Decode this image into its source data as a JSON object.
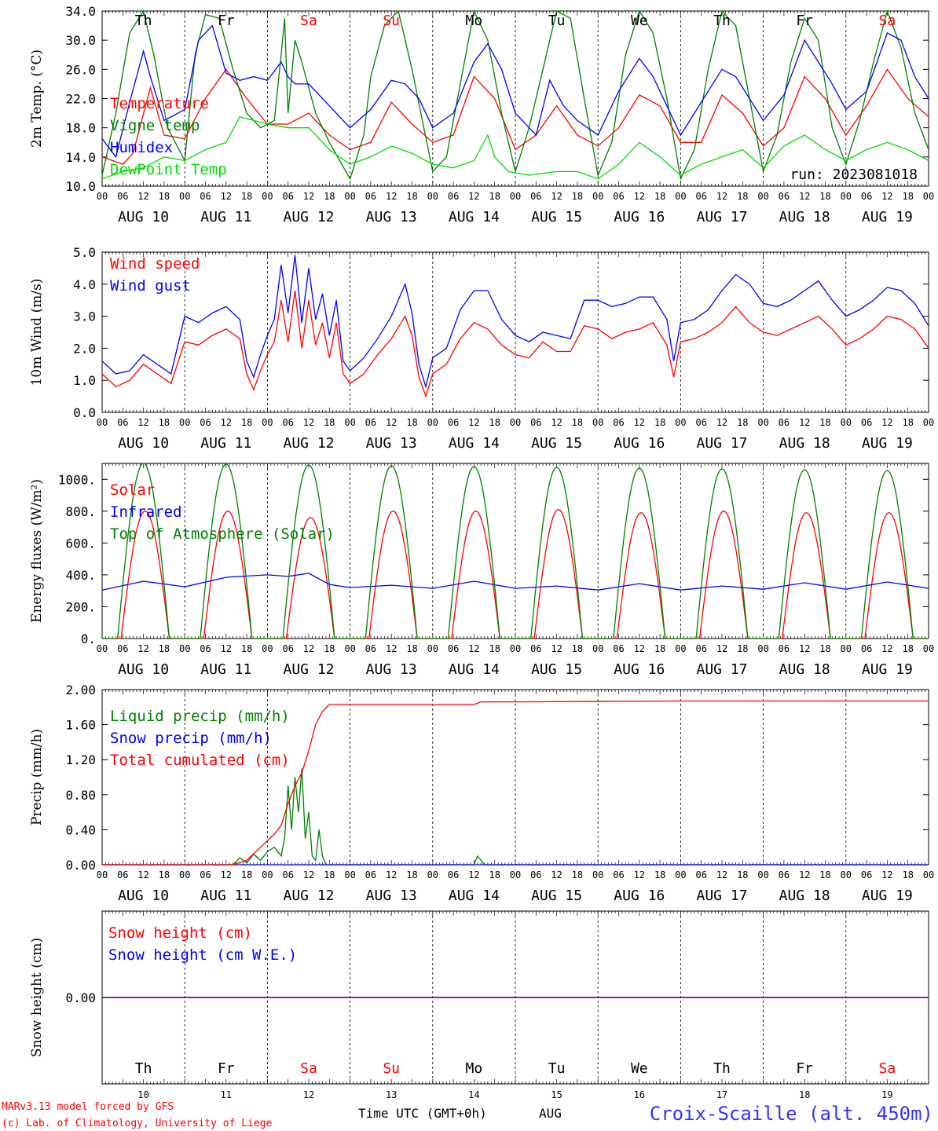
{
  "footer": {
    "model_line": "MARv3.13 model forced by GFS",
    "credit_line": "(c) Lab. of Climatology, University of Liege",
    "xlabel": "Time UTC (GMT+0h)",
    "month": "AUG",
    "station": "Croix-Scaille (alt. 450m)"
  },
  "colors": {
    "red": "#ff0000",
    "green": "#008000",
    "blue": "#0000ff",
    "lightgreen": "#00dd00",
    "purple": "#800080",
    "station": "#3333ff"
  },
  "time_axis": {
    "day_of_week": [
      "Th",
      "Fr",
      "Sa",
      "Su",
      "Mo",
      "Tu",
      "We",
      "Th",
      "Fr",
      "Sa"
    ],
    "weekend_index": [
      2,
      3,
      9
    ],
    "dates": [
      "AUG 10",
      "AUG 11",
      "AUG 12",
      "AUG 13",
      "AUG 14",
      "AUG 15",
      "AUG 16",
      "AUG 17",
      "AUG 18",
      "AUG 19"
    ],
    "day_numbers": [
      "10",
      "11",
      "12",
      "13",
      "14",
      "15",
      "16",
      "17",
      "18",
      "19"
    ],
    "hour_ticks": [
      "00",
      "06",
      "12",
      "18"
    ],
    "last_tick": "00"
  },
  "chart_data": [
    {
      "type": "line",
      "ylabel": "2m Temp. (°C)",
      "ylim": [
        10,
        34
      ],
      "yticks": [
        "10.0",
        "14.0",
        "18.0",
        "22.0",
        "26.0",
        "30.0",
        "34.0"
      ],
      "annotation": "run: 2023081018",
      "x_unit": "hours since AUG 10 00 UTC",
      "series": [
        {
          "name": "Temperature",
          "color": "red",
          "x": [
            0,
            6,
            9,
            14,
            18,
            24,
            30,
            36,
            42,
            48,
            54,
            60,
            66,
            72,
            78,
            84,
            90,
            96,
            102,
            108,
            114,
            120,
            126,
            132,
            138,
            144,
            150,
            156,
            162,
            168,
            174,
            180,
            186,
            192,
            198,
            204,
            210,
            216,
            222,
            228,
            234,
            240
          ],
          "values": [
            14,
            13,
            14.5,
            23.5,
            17,
            16.5,
            22,
            26,
            22,
            18.5,
            18.5,
            20,
            17,
            15,
            16,
            21.5,
            18.5,
            16,
            17,
            25,
            22,
            15,
            17,
            21,
            17,
            15.5,
            18,
            22.5,
            21,
            16,
            16,
            22.5,
            20,
            15.5,
            18,
            25,
            22,
            17,
            21,
            26,
            22,
            19.5
          ]
        },
        {
          "name": "Vigne temp",
          "color": "green",
          "x": [
            0,
            4,
            8,
            12,
            15,
            19,
            24,
            27,
            30,
            34,
            38,
            42,
            46,
            50,
            52,
            53,
            54,
            56,
            58,
            62,
            66,
            72,
            76,
            78,
            82,
            86,
            90,
            96,
            100,
            104,
            108,
            112,
            116,
            120,
            124,
            128,
            132,
            136,
            140,
            144,
            148,
            152,
            156,
            160,
            164,
            168,
            172,
            176,
            180,
            184,
            188,
            192,
            196,
            200,
            204,
            208,
            212,
            216,
            220,
            224,
            228,
            232,
            236,
            240
          ],
          "values": [
            11.5,
            20,
            31,
            34,
            28,
            18,
            13.5,
            28,
            33.5,
            33,
            26,
            20,
            18,
            19,
            28,
            33,
            20,
            30,
            27,
            20,
            16,
            11,
            17,
            25,
            32,
            34,
            26,
            12,
            14,
            24,
            34,
            30,
            20,
            12,
            18,
            26,
            34,
            33,
            22,
            11.5,
            16,
            28,
            34,
            31,
            22,
            11,
            15,
            26,
            34,
            32,
            22,
            12,
            17,
            27,
            33,
            30,
            18,
            13,
            19,
            27,
            34,
            29,
            20,
            15
          ]
        },
        {
          "name": "Humidex",
          "color": "blue",
          "x": [
            0,
            4,
            8,
            12,
            14,
            18,
            24,
            28,
            32,
            36,
            40,
            44,
            48,
            52,
            54,
            56,
            60,
            66,
            72,
            78,
            84,
            88,
            92,
            96,
            102,
            108,
            112,
            116,
            120,
            126,
            130,
            134,
            138,
            144,
            150,
            156,
            160,
            164,
            168,
            174,
            180,
            184,
            188,
            192,
            198,
            204,
            208,
            212,
            216,
            222,
            228,
            232,
            236,
            240
          ],
          "values": [
            16.5,
            14,
            21.5,
            28.5,
            25,
            19,
            20.5,
            30,
            32,
            25.5,
            24.5,
            25,
            24.5,
            27,
            25,
            24,
            24,
            21,
            18,
            20.5,
            24.5,
            24,
            22,
            18,
            20,
            27,
            29.5,
            26,
            20,
            17,
            24.5,
            21,
            19,
            17,
            23,
            27.5,
            25,
            21,
            17,
            21.5,
            26,
            25,
            22,
            19,
            22.5,
            30,
            27,
            24,
            20.5,
            23,
            31,
            30,
            25,
            22
          ]
        },
        {
          "name": "DewPoint Temp",
          "color": "lightgreen",
          "x": [
            0,
            6,
            12,
            18,
            24,
            30,
            36,
            40,
            44,
            48,
            54,
            60,
            66,
            72,
            78,
            84,
            90,
            96,
            102,
            108,
            112,
            114,
            118,
            124,
            132,
            138,
            144,
            150,
            156,
            162,
            168,
            174,
            180,
            186,
            192,
            198,
            204,
            210,
            216,
            222,
            228,
            234,
            240
          ],
          "values": [
            11,
            12,
            12.5,
            14,
            13.5,
            15,
            16,
            19.5,
            19,
            18.5,
            18,
            18,
            15,
            13,
            14,
            15.5,
            14.5,
            13,
            12.5,
            13.5,
            17,
            14,
            12,
            11.5,
            12,
            12,
            11,
            13,
            16,
            14,
            11.5,
            13,
            14,
            15,
            12.5,
            15.5,
            17,
            15,
            13.5,
            15,
            16,
            15,
            13.5
          ]
        }
      ]
    },
    {
      "type": "line",
      "ylabel": "10m Wind (m/s)",
      "ylim": [
        0,
        5
      ],
      "yticks": [
        "0.0",
        "1.0",
        "2.0",
        "3.0",
        "4.0",
        "5.0"
      ],
      "x_unit": "hours since AUG 10 00 UTC",
      "series": [
        {
          "name": "Wind speed",
          "color": "red",
          "x": [
            0,
            4,
            8,
            12,
            16,
            20,
            24,
            28,
            32,
            36,
            40,
            42,
            44,
            46,
            48,
            50,
            52,
            54,
            56,
            58,
            60,
            62,
            64,
            66,
            68,
            70,
            72,
            76,
            80,
            84,
            88,
            90,
            92,
            94,
            96,
            100,
            104,
            108,
            112,
            116,
            120,
            124,
            128,
            132,
            136,
            140,
            144,
            148,
            152,
            156,
            160,
            164,
            166,
            168,
            172,
            176,
            180,
            184,
            188,
            192,
            196,
            200,
            204,
            208,
            212,
            216,
            220,
            224,
            228,
            232,
            236,
            240
          ],
          "values": [
            1.2,
            0.8,
            1,
            1.5,
            1.2,
            0.9,
            2.2,
            2.1,
            2.4,
            2.6,
            2.3,
            1.2,
            0.7,
            1.3,
            1.8,
            2.2,
            3.5,
            2.2,
            3.8,
            2,
            3.5,
            2.1,
            2.8,
            1.7,
            2.8,
            1.2,
            0.9,
            1.2,
            1.8,
            2.3,
            3,
            2.4,
            1.1,
            0.5,
            1.2,
            1.5,
            2.3,
            2.8,
            2.6,
            2.1,
            1.8,
            1.7,
            2.2,
            1.9,
            1.9,
            2.7,
            2.6,
            2.3,
            2.5,
            2.6,
            2.8,
            2.1,
            1.1,
            2.2,
            2.3,
            2.5,
            2.8,
            3.3,
            2.8,
            2.5,
            2.4,
            2.6,
            2.8,
            3,
            2.6,
            2.1,
            2.3,
            2.6,
            3,
            2.9,
            2.6,
            2
          ]
        },
        {
          "name": "Wind gust",
          "color": "blue",
          "x": [
            0,
            4,
            8,
            12,
            16,
            20,
            24,
            28,
            32,
            36,
            40,
            42,
            44,
            46,
            48,
            50,
            52,
            54,
            56,
            58,
            60,
            62,
            64,
            66,
            68,
            70,
            72,
            76,
            80,
            84,
            88,
            90,
            92,
            94,
            96,
            100,
            104,
            108,
            112,
            116,
            120,
            124,
            128,
            132,
            136,
            140,
            144,
            148,
            152,
            156,
            160,
            164,
            166,
            168,
            172,
            176,
            180,
            184,
            188,
            192,
            196,
            200,
            204,
            208,
            212,
            216,
            220,
            224,
            228,
            232,
            236,
            240
          ],
          "values": [
            1.6,
            1.2,
            1.3,
            1.8,
            1.5,
            1.2,
            3,
            2.8,
            3.1,
            3.3,
            2.9,
            1.6,
            1.1,
            1.8,
            2.4,
            2.9,
            4.6,
            3.1,
            4.9,
            2.8,
            4.5,
            2.9,
            3.7,
            2.4,
            3.5,
            1.6,
            1.3,
            1.7,
            2.3,
            3,
            4,
            3.1,
            1.5,
            0.8,
            1.7,
            2,
            3.2,
            3.8,
            3.8,
            2.9,
            2.4,
            2.2,
            2.5,
            2.4,
            2.3,
            3.5,
            3.5,
            3.3,
            3.4,
            3.6,
            3.6,
            2.9,
            1.6,
            2.8,
            2.9,
            3.2,
            3.8,
            4.3,
            4,
            3.4,
            3.3,
            3.5,
            3.8,
            4.1,
            3.5,
            3,
            3.2,
            3.5,
            3.9,
            3.8,
            3.4,
            2.7
          ]
        }
      ]
    },
    {
      "type": "line",
      "ylabel": "Energy fluxes (W/m²)",
      "ylim": [
        0,
        1100
      ],
      "yticks": [
        "0.",
        "200.",
        "400.",
        "600.",
        "800.",
        "1000."
      ],
      "x_unit": "hours since AUG 10 00 UTC",
      "series": [
        {
          "name": "Solar",
          "color": "red",
          "peaks": [
            800,
            800,
            760,
            800,
            800,
            810,
            790,
            800,
            790,
            790
          ],
          "day_start": 5.5,
          "day_end": 19.5
        },
        {
          "name": "Infrared",
          "color": "blue",
          "x": [
            0,
            12,
            24,
            36,
            48,
            54,
            60,
            66,
            72,
            84,
            96,
            108,
            120,
            132,
            144,
            156,
            168,
            180,
            192,
            204,
            216,
            228,
            240
          ],
          "values": [
            305,
            360,
            325,
            385,
            400,
            390,
            410,
            340,
            320,
            335,
            315,
            360,
            315,
            330,
            305,
            345,
            305,
            330,
            310,
            350,
            310,
            355,
            315
          ]
        },
        {
          "name": "Top of Atmosphere (Solar)",
          "color": "green",
          "peaks": [
            1100,
            1095,
            1090,
            1085,
            1080,
            1075,
            1070,
            1065,
            1060,
            1055
          ],
          "day_start": 4.5,
          "day_end": 19.5
        }
      ]
    },
    {
      "type": "line",
      "ylabel": "Precip (mm/h)",
      "ylim": [
        0,
        2
      ],
      "yticks": [
        "0.00",
        "0.40",
        "0.80",
        "1.20",
        "1.60",
        "2.00"
      ],
      "x_unit": "hours since AUG 10 00 UTC",
      "series": [
        {
          "name": "Liquid precip (mm/h)",
          "color": "green",
          "x": [
            0,
            38,
            40,
            42,
            44,
            46,
            48,
            50,
            52,
            53,
            54,
            55,
            56,
            57,
            58,
            59,
            60,
            61,
            62,
            63,
            64,
            65,
            66,
            108,
            109,
            110,
            111,
            240
          ],
          "values": [
            0,
            0,
            0.08,
            0.02,
            0.12,
            0.05,
            0.15,
            0.2,
            0.1,
            0.3,
            0.9,
            0.4,
            1.0,
            0.6,
            1.1,
            0.3,
            0.6,
            0.1,
            0.05,
            0.4,
            0.1,
            0,
            0,
            0,
            0.1,
            0.05,
            0,
            0
          ]
        },
        {
          "name": "Snow precip (mm/h)",
          "color": "blue",
          "x": [
            0,
            240
          ],
          "values": [
            0,
            0
          ]
        },
        {
          "name": "Total cumulated (cm)",
          "color": "red",
          "x": [
            0,
            38,
            42,
            46,
            50,
            52,
            54,
            56,
            58,
            60,
            62,
            64,
            66,
            108,
            110,
            120,
            168,
            240
          ],
          "values": [
            0,
            0,
            0.05,
            0.2,
            0.35,
            0.45,
            0.7,
            0.9,
            1.05,
            1.3,
            1.6,
            1.75,
            1.83,
            1.83,
            1.86,
            1.86,
            1.87,
            1.87
          ]
        }
      ]
    },
    {
      "type": "line",
      "ylabel": "Snow height (cm)",
      "ylim": [
        -1,
        1
      ],
      "yticks": [
        "0.00"
      ],
      "x_unit": "hours since AUG 10 00 UTC",
      "series": [
        {
          "name": "Snow height (cm)",
          "color": "red",
          "x": [
            0,
            240
          ],
          "values": [
            0,
            0
          ]
        },
        {
          "name": "Snow height (cm W.E.)",
          "color": "blue",
          "x": [
            0,
            240
          ],
          "values": [
            0,
            0
          ]
        }
      ]
    }
  ]
}
